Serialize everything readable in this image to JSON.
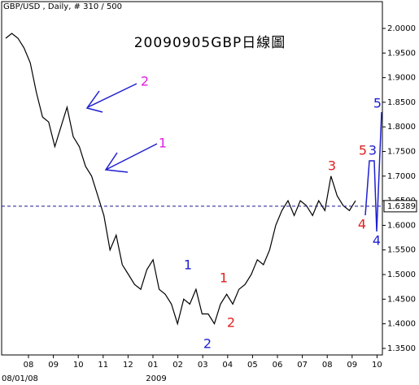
{
  "chart_data": {
    "type": "line",
    "header": "GBP/USD , Daily, # 310 / 500",
    "title": "20090905GBP日線圖",
    "values": [
      1.98,
      1.99,
      1.98,
      1.96,
      1.93,
      1.87,
      1.82,
      1.81,
      1.76,
      1.8,
      1.84,
      1.78,
      1.76,
      1.72,
      1.7,
      1.66,
      1.62,
      1.55,
      1.58,
      1.52,
      1.5,
      1.48,
      1.47,
      1.51,
      1.53,
      1.47,
      1.46,
      1.44,
      1.4,
      1.45,
      1.44,
      1.47,
      1.42,
      1.42,
      1.4,
      1.44,
      1.46,
      1.44,
      1.47,
      1.48,
      1.5,
      1.53,
      1.52,
      1.55,
      1.6,
      1.63,
      1.65,
      1.62,
      1.65,
      1.64,
      1.62,
      1.65,
      1.63,
      1.7,
      1.66,
      1.64,
      1.63,
      1.65
    ],
    "color": "#000000",
    "ylim": [
      1.3367,
      2.0495
    ],
    "yticks": [
      {
        "value": 1.35,
        "label": "1.3500"
      },
      {
        "value": 1.4,
        "label": "1.4000"
      },
      {
        "value": 1.45,
        "label": "1.4500"
      },
      {
        "value": 1.5,
        "label": "1.5000"
      },
      {
        "value": 1.55,
        "label": "1.5500"
      },
      {
        "value": 1.6,
        "label": "1.6000"
      },
      {
        "value": 1.65,
        "label": "1.6500"
      },
      {
        "value": 1.7,
        "label": "1.7000"
      },
      {
        "value": 1.75,
        "label": "1.7500"
      },
      {
        "value": 1.8,
        "label": "1.8000"
      },
      {
        "value": 1.85,
        "label": "1.8500"
      },
      {
        "value": 1.9,
        "label": "1.9000"
      },
      {
        "value": 1.95,
        "label": "1.9500"
      },
      {
        "value": 2,
        "label": "2.0000"
      }
    ],
    "xticks": [
      "08",
      "09",
      "10",
      "11",
      "12",
      "01",
      "02",
      "03",
      "04",
      "05",
      "06",
      "07",
      "08",
      "09",
      "10"
    ],
    "x_start_label": "08/01/08",
    "year_label": "2009",
    "last_value": {
      "value": 1.6389,
      "label": "1.6389"
    },
    "annotations": [
      {
        "text": "2",
        "color": "#e020e0"
      },
      {
        "text": "1",
        "color": "#e020e0"
      },
      {
        "text": "1",
        "color": "#2020d0"
      },
      {
        "text": "2",
        "color": "#2020d0"
      },
      {
        "text": "1",
        "color": "#e02020"
      },
      {
        "text": "2",
        "color": "#e02020"
      },
      {
        "text": "3",
        "color": "#e02020"
      },
      {
        "text": "4",
        "color": "#e02020"
      },
      {
        "text": "5",
        "color": "#e02020"
      },
      {
        "text": "3",
        "color": "#2020d0"
      },
      {
        "text": "5",
        "color": "#2020d0"
      },
      {
        "text": "4",
        "color": "#2020d0"
      }
    ]
  }
}
